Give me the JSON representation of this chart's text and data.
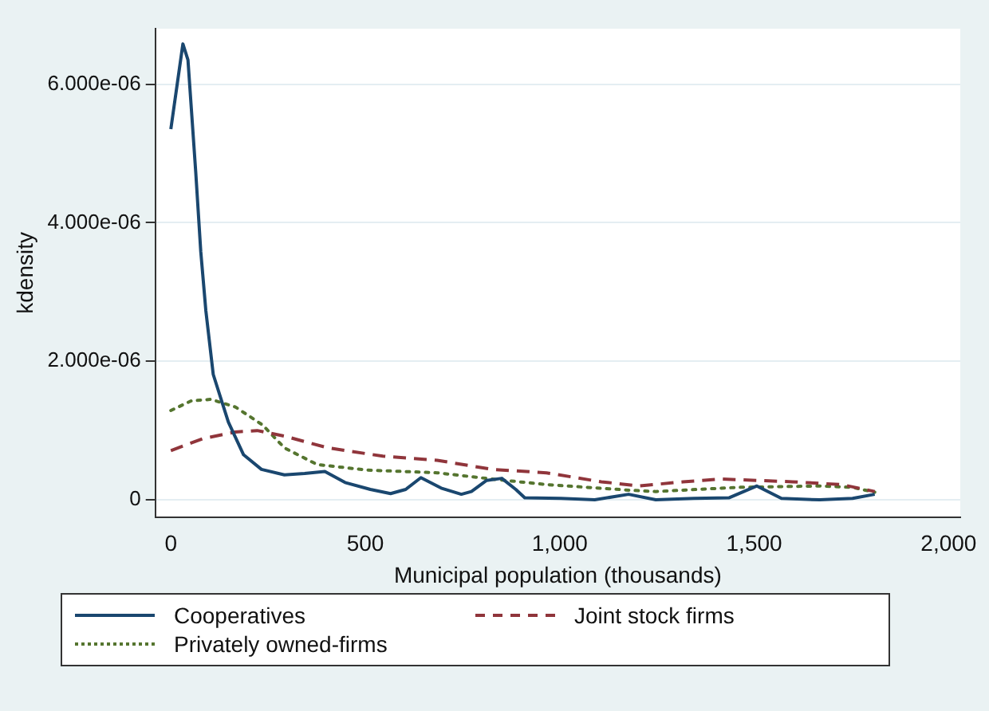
{
  "chart_data": {
    "type": "line",
    "xlabel": "Municipal population (thousands)",
    "ylabel": "kdensity",
    "xlim": [
      -40,
      2030
    ],
    "xticks": [
      {
        "value": 0,
        "label": "0"
      },
      {
        "value": 500,
        "label": "500"
      },
      {
        "value": 1000,
        "label": "1,000"
      },
      {
        "value": 1500,
        "label": "1,500"
      },
      {
        "value": 2000,
        "label": "2,000"
      }
    ],
    "ylim": [
      -2.5e-07,
      6.8e-06
    ],
    "yticks": [
      {
        "value": 0,
        "label": "0"
      },
      {
        "value": 2e-06,
        "label": "2.000e-06"
      },
      {
        "value": 4e-06,
        "label": "4.000e-06"
      },
      {
        "value": 6e-06,
        "label": "6.000e-06"
      }
    ],
    "grid": "y",
    "legend": "bottom",
    "marker": "none",
    "series": [
      {
        "name": "Cooperatives",
        "color": "#1a476f",
        "line_style": "solid",
        "x": [
          0,
          31,
          44,
          64,
          77,
          90,
          109,
          148,
          187,
          233,
          292,
          344,
          396,
          448,
          513,
          565,
          604,
          643,
          695,
          747,
          773,
          812,
          851,
          887,
          910,
          1003,
          1090,
          1177,
          1247,
          1345,
          1436,
          1507,
          1570,
          1669,
          1753,
          1810
        ],
        "values": [
          5.35e-06,
          6.58e-06,
          6.35e-06,
          4.73e-06,
          3.58e-06,
          2.73e-06,
          1.81e-06,
          1.12e-06,
          6.5e-07,
          4.4e-07,
          3.6e-07,
          3.8e-07,
          4.1e-07,
          2.5e-07,
          1.5e-07,
          9e-08,
          1.5e-07,
          3.2e-07,
          1.7e-07,
          8e-08,
          1.2e-07,
          2.8e-07,
          3.1e-07,
          1.5e-07,
          3e-08,
          2e-08,
          0,
          8e-08,
          0,
          2e-08,
          3e-08,
          2e-07,
          2e-08,
          0,
          2e-08,
          8e-08
        ]
      },
      {
        "name": "Joint stock firms",
        "color": "#90353b",
        "line_style": "dashed",
        "x": [
          0,
          81,
          166,
          222,
          292,
          404,
          545,
          685,
          826,
          966,
          1107,
          1205,
          1317,
          1416,
          1598,
          1725,
          1810
        ],
        "values": [
          7.1e-07,
          8.8e-07,
          9.8e-07,
          1e-06,
          9.2e-07,
          7.5e-07,
          6.3e-07,
          5.7e-07,
          4.4e-07,
          3.9e-07,
          2.6e-07,
          2e-07,
          2.6e-07,
          3e-07,
          2.6e-07,
          2.2e-07,
          1.2e-07
        ]
      },
      {
        "name": "Privately owned-firms",
        "color": "#55752f",
        "line_style": "dotted",
        "x": [
          0,
          53,
          103,
          166,
          236,
          292,
          376,
          503,
          685,
          826,
          966,
          1177,
          1247,
          1458,
          1669,
          1753,
          1810
        ],
        "values": [
          1.29e-06,
          1.43e-06,
          1.45e-06,
          1.34e-06,
          1.08e-06,
          7.5e-07,
          5.1e-07,
          4.3e-07,
          3.9e-07,
          3e-07,
          2.2e-07,
          1.4e-07,
          1.2e-07,
          1.8e-07,
          2e-07,
          1.8e-07,
          1.1e-07
        ]
      }
    ]
  }
}
